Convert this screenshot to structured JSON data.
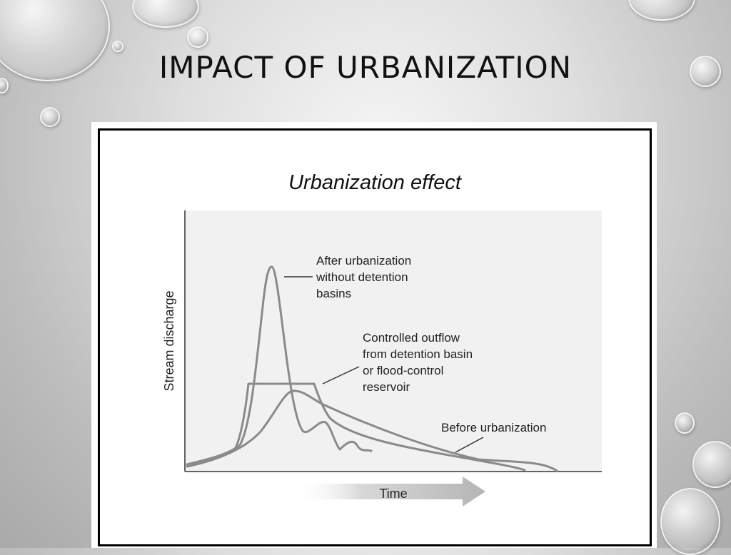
{
  "slide": {
    "title": "IMPACT OF URBANIZATION"
  },
  "figure": {
    "title": "Urbanization effect",
    "y_axis_label": "Stream discharge",
    "x_axis_label": "Time",
    "annotations": {
      "after_urbanization": [
        "After urbanization",
        "without detention",
        "basins"
      ],
      "controlled_outflow": [
        "Controlled outflow",
        "from detention basin",
        "or flood-control",
        "reservoir"
      ],
      "before_urbanization": [
        "Before urbanization"
      ]
    }
  },
  "colors": {
    "curve": "#8a8a8a",
    "axis": "#333333",
    "plot_background": "#f1f1f1"
  }
}
